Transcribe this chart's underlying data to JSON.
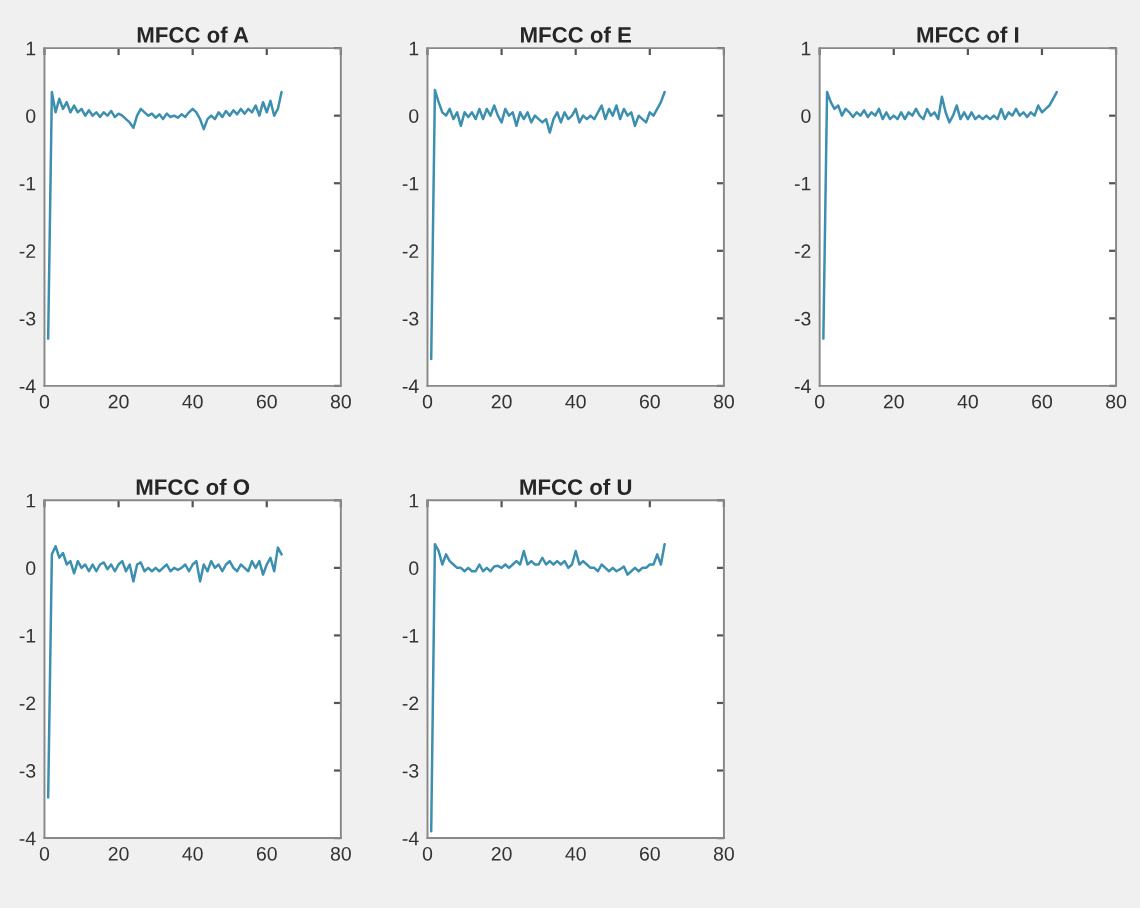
{
  "chart_data": [
    {
      "type": "line",
      "title": "MFCC of A",
      "xlim": [
        0,
        80
      ],
      "xticks": [
        0,
        20,
        40,
        60,
        80
      ],
      "ylim": [
        -4,
        1
      ],
      "yticks": [
        -4,
        -3,
        -2,
        -1,
        0,
        1
      ],
      "x": [
        1,
        2,
        3,
        4,
        5,
        6,
        7,
        8,
        9,
        10,
        11,
        12,
        13,
        14,
        15,
        16,
        17,
        18,
        19,
        20,
        21,
        22,
        23,
        24,
        25,
        26,
        27,
        28,
        29,
        30,
        31,
        32,
        33,
        34,
        35,
        36,
        37,
        38,
        39,
        40,
        41,
        42,
        43,
        44,
        45,
        46,
        47,
        48,
        49,
        50,
        51,
        52,
        53,
        54,
        55,
        56,
        57,
        58,
        59,
        60,
        61,
        62,
        63,
        64
      ],
      "series": [
        {
          "color": "#3d8fb0",
          "values": [
            -3.3,
            0.35,
            0.05,
            0.25,
            0.1,
            0.2,
            0.05,
            0.15,
            0.05,
            0.1,
            0.0,
            0.08,
            0.0,
            0.05,
            -0.02,
            0.05,
            0.0,
            0.07,
            -0.02,
            0.03,
            0.0,
            -0.05,
            -0.1,
            -0.18,
            0.0,
            0.1,
            0.05,
            0.0,
            0.03,
            -0.03,
            0.02,
            -0.05,
            0.03,
            -0.02,
            0.0,
            -0.03,
            0.02,
            -0.02,
            0.05,
            0.1,
            0.05,
            -0.05,
            -0.2,
            -0.05,
            0.0,
            -0.05,
            0.05,
            -0.02,
            0.07,
            0.0,
            0.08,
            0.02,
            0.1,
            0.03,
            0.1,
            0.05,
            0.15,
            0.0,
            0.2,
            0.05,
            0.22,
            0.0,
            0.1,
            0.35
          ]
        }
      ]
    },
    {
      "type": "line",
      "title": "MFCC of E",
      "xlim": [
        0,
        80
      ],
      "xticks": [
        0,
        20,
        40,
        60,
        80
      ],
      "ylim": [
        -4,
        1
      ],
      "yticks": [
        -4,
        -3,
        -2,
        -1,
        0,
        1
      ],
      "x": [
        1,
        2,
        3,
        4,
        5,
        6,
        7,
        8,
        9,
        10,
        11,
        12,
        13,
        14,
        15,
        16,
        17,
        18,
        19,
        20,
        21,
        22,
        23,
        24,
        25,
        26,
        27,
        28,
        29,
        30,
        31,
        32,
        33,
        34,
        35,
        36,
        37,
        38,
        39,
        40,
        41,
        42,
        43,
        44,
        45,
        46,
        47,
        48,
        49,
        50,
        51,
        52,
        53,
        54,
        55,
        56,
        57,
        58,
        59,
        60,
        61,
        62,
        63,
        64
      ],
      "series": [
        {
          "color": "#3d8fb0",
          "values": [
            -3.6,
            0.38,
            0.2,
            0.05,
            0.0,
            0.1,
            -0.05,
            0.05,
            -0.15,
            0.05,
            -0.02,
            0.05,
            -0.05,
            0.1,
            -0.05,
            0.1,
            0.0,
            0.15,
            0.0,
            -0.1,
            0.1,
            0.0,
            0.05,
            -0.15,
            0.05,
            -0.05,
            0.05,
            -0.1,
            0.0,
            -0.05,
            -0.1,
            -0.05,
            -0.25,
            -0.05,
            0.05,
            -0.1,
            0.05,
            -0.05,
            0.0,
            0.1,
            -0.1,
            0.0,
            -0.05,
            0.0,
            -0.05,
            0.05,
            0.15,
            -0.05,
            0.1,
            0.0,
            0.15,
            -0.05,
            0.1,
            0.0,
            0.05,
            -0.15,
            0.0,
            -0.05,
            -0.1,
            0.05,
            0.0,
            0.1,
            0.2,
            0.35
          ]
        }
      ]
    },
    {
      "type": "line",
      "title": "MFCC of I",
      "xlim": [
        0,
        80
      ],
      "xticks": [
        0,
        20,
        40,
        60,
        80
      ],
      "ylim": [
        -4,
        1
      ],
      "yticks": [
        -4,
        -3,
        -2,
        -1,
        0,
        1
      ],
      "x": [
        1,
        2,
        3,
        4,
        5,
        6,
        7,
        8,
        9,
        10,
        11,
        12,
        13,
        14,
        15,
        16,
        17,
        18,
        19,
        20,
        21,
        22,
        23,
        24,
        25,
        26,
        27,
        28,
        29,
        30,
        31,
        32,
        33,
        34,
        35,
        36,
        37,
        38,
        39,
        40,
        41,
        42,
        43,
        44,
        45,
        46,
        47,
        48,
        49,
        50,
        51,
        52,
        53,
        54,
        55,
        56,
        57,
        58,
        59,
        60,
        61,
        62,
        63,
        64
      ],
      "series": [
        {
          "color": "#3d8fb0",
          "values": [
            -3.3,
            0.35,
            0.2,
            0.1,
            0.15,
            0.0,
            0.1,
            0.05,
            -0.02,
            0.05,
            0.0,
            0.08,
            -0.02,
            0.05,
            0.0,
            0.1,
            -0.05,
            0.05,
            -0.05,
            0.0,
            -0.05,
            0.05,
            -0.05,
            0.05,
            0.0,
            0.1,
            0.0,
            -0.05,
            0.1,
            0.0,
            0.05,
            -0.05,
            0.28,
            0.05,
            -0.1,
            0.0,
            0.15,
            -0.05,
            0.05,
            -0.05,
            0.05,
            -0.05,
            0.0,
            -0.05,
            0.0,
            -0.05,
            0.0,
            -0.05,
            0.1,
            -0.05,
            0.05,
            0.0,
            0.1,
            0.0,
            0.05,
            -0.02,
            0.05,
            0.0,
            0.15,
            0.05,
            0.1,
            0.15,
            0.25,
            0.35
          ]
        }
      ]
    },
    {
      "type": "line",
      "title": "MFCC of O",
      "xlim": [
        0,
        80
      ],
      "xticks": [
        0,
        20,
        40,
        60,
        80
      ],
      "ylim": [
        -4,
        1
      ],
      "yticks": [
        -4,
        -3,
        -2,
        -1,
        0,
        1
      ],
      "x": [
        1,
        2,
        3,
        4,
        5,
        6,
        7,
        8,
        9,
        10,
        11,
        12,
        13,
        14,
        15,
        16,
        17,
        18,
        19,
        20,
        21,
        22,
        23,
        24,
        25,
        26,
        27,
        28,
        29,
        30,
        31,
        32,
        33,
        34,
        35,
        36,
        37,
        38,
        39,
        40,
        41,
        42,
        43,
        44,
        45,
        46,
        47,
        48,
        49,
        50,
        51,
        52,
        53,
        54,
        55,
        56,
        57,
        58,
        59,
        60,
        61,
        62,
        63,
        64
      ],
      "series": [
        {
          "color": "#3d8fb0",
          "values": [
            -3.4,
            0.2,
            0.32,
            0.15,
            0.22,
            0.05,
            0.1,
            -0.08,
            0.1,
            0.0,
            0.05,
            -0.05,
            0.05,
            -0.05,
            0.05,
            0.08,
            -0.02,
            0.05,
            -0.05,
            0.05,
            0.1,
            -0.05,
            0.05,
            -0.2,
            0.05,
            0.08,
            -0.05,
            0.0,
            -0.05,
            0.0,
            -0.05,
            0.0,
            0.05,
            -0.05,
            0.0,
            -0.03,
            0.0,
            0.05,
            -0.05,
            0.05,
            0.1,
            -0.2,
            0.05,
            -0.05,
            0.1,
            0.0,
            0.05,
            -0.05,
            0.05,
            0.1,
            0.0,
            -0.05,
            0.05,
            0.0,
            -0.05,
            0.1,
            0.0,
            0.1,
            -0.1,
            0.05,
            0.15,
            -0.05,
            0.3,
            0.2
          ]
        }
      ]
    },
    {
      "type": "line",
      "title": "MFCC of U",
      "xlim": [
        0,
        80
      ],
      "xticks": [
        0,
        20,
        40,
        60,
        80
      ],
      "ylim": [
        -4,
        1
      ],
      "yticks": [
        -4,
        -3,
        -2,
        -1,
        0,
        1
      ],
      "x": [
        1,
        2,
        3,
        4,
        5,
        6,
        7,
        8,
        9,
        10,
        11,
        12,
        13,
        14,
        15,
        16,
        17,
        18,
        19,
        20,
        21,
        22,
        23,
        24,
        25,
        26,
        27,
        28,
        29,
        30,
        31,
        32,
        33,
        34,
        35,
        36,
        37,
        38,
        39,
        40,
        41,
        42,
        43,
        44,
        45,
        46,
        47,
        48,
        49,
        50,
        51,
        52,
        53,
        54,
        55,
        56,
        57,
        58,
        59,
        60,
        61,
        62,
        63,
        64
      ],
      "series": [
        {
          "color": "#3d8fb0",
          "values": [
            -3.9,
            0.35,
            0.25,
            0.05,
            0.2,
            0.1,
            0.05,
            0.0,
            0.0,
            -0.05,
            0.0,
            -0.05,
            -0.05,
            0.05,
            -0.05,
            0.0,
            -0.05,
            0.02,
            0.03,
            0.0,
            0.05,
            0.0,
            0.05,
            0.1,
            0.05,
            0.25,
            0.05,
            0.1,
            0.05,
            0.05,
            0.15,
            0.05,
            0.1,
            0.05,
            0.1,
            0.05,
            0.1,
            0.0,
            0.05,
            0.25,
            0.05,
            0.1,
            0.05,
            0.0,
            0.0,
            -0.05,
            0.05,
            0.0,
            -0.05,
            0.0,
            -0.05,
            -0.02,
            0.02,
            -0.1,
            -0.05,
            0.0,
            -0.05,
            0.0,
            0.0,
            0.05,
            0.05,
            0.2,
            0.05,
            0.35
          ]
        }
      ]
    }
  ]
}
